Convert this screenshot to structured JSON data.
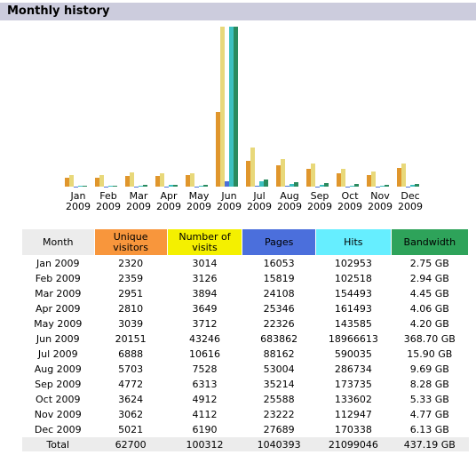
{
  "title": "Monthly history",
  "chart_data": {
    "type": "bar",
    "categories": [
      "Jan 2009",
      "Feb 2009",
      "Mar 2009",
      "Apr 2009",
      "May 2009",
      "Jun 2009",
      "Jul 2009",
      "Aug 2009",
      "Sep 2009",
      "Oct 2009",
      "Nov 2009",
      "Dec 2009"
    ],
    "series": [
      {
        "name": "Unique visitors",
        "color": "#e0962c",
        "values": [
          2320,
          2359,
          2951,
          2810,
          3039,
          20151,
          6888,
          5703,
          4772,
          3624,
          3062,
          5021
        ]
      },
      {
        "name": "Number of visits",
        "color": "#e8d87a",
        "values": [
          3014,
          3126,
          3894,
          3649,
          3712,
          43246,
          10616,
          7528,
          6313,
          4912,
          4112,
          6190
        ]
      },
      {
        "name": "Pages",
        "color": "#4a6fd8",
        "values": [
          16053,
          15819,
          24108,
          25346,
          22326,
          683862,
          88162,
          53004,
          35214,
          25588,
          23222,
          27689
        ]
      },
      {
        "name": "Hits",
        "color": "#3cc0c0",
        "values": [
          102953,
          102518,
          154493,
          161493,
          143585,
          18966613,
          590035,
          286734,
          173735,
          133602,
          112947,
          170338
        ]
      },
      {
        "name": "Bandwidth",
        "color": "#2a8a5e",
        "values": [
          2.75,
          2.94,
          4.45,
          4.06,
          4.2,
          368.7,
          15.9,
          9.69,
          8.28,
          5.33,
          4.77,
          6.13
        ],
        "value_labels": [
          "2.75 GB",
          "2.94 GB",
          "4.45 GB",
          "4.06 GB",
          "4.20 GB",
          "368.70 GB",
          "15.90 GB",
          "9.69 GB",
          "8.28 GB",
          "5.33 GB",
          "4.77 GB",
          "6.13 GB"
        ]
      }
    ]
  },
  "table": {
    "month_header": "Month",
    "total_label": "Total",
    "header_colors": [
      "#ececec",
      "#f8963c",
      "#f4f000",
      "#4b6fdc",
      "#66eeff",
      "#2ea35a"
    ],
    "totals": [
      62700,
      100312,
      1040393,
      21099046,
      437.19
    ],
    "total_bandwidth_label": "437.19 GB"
  }
}
